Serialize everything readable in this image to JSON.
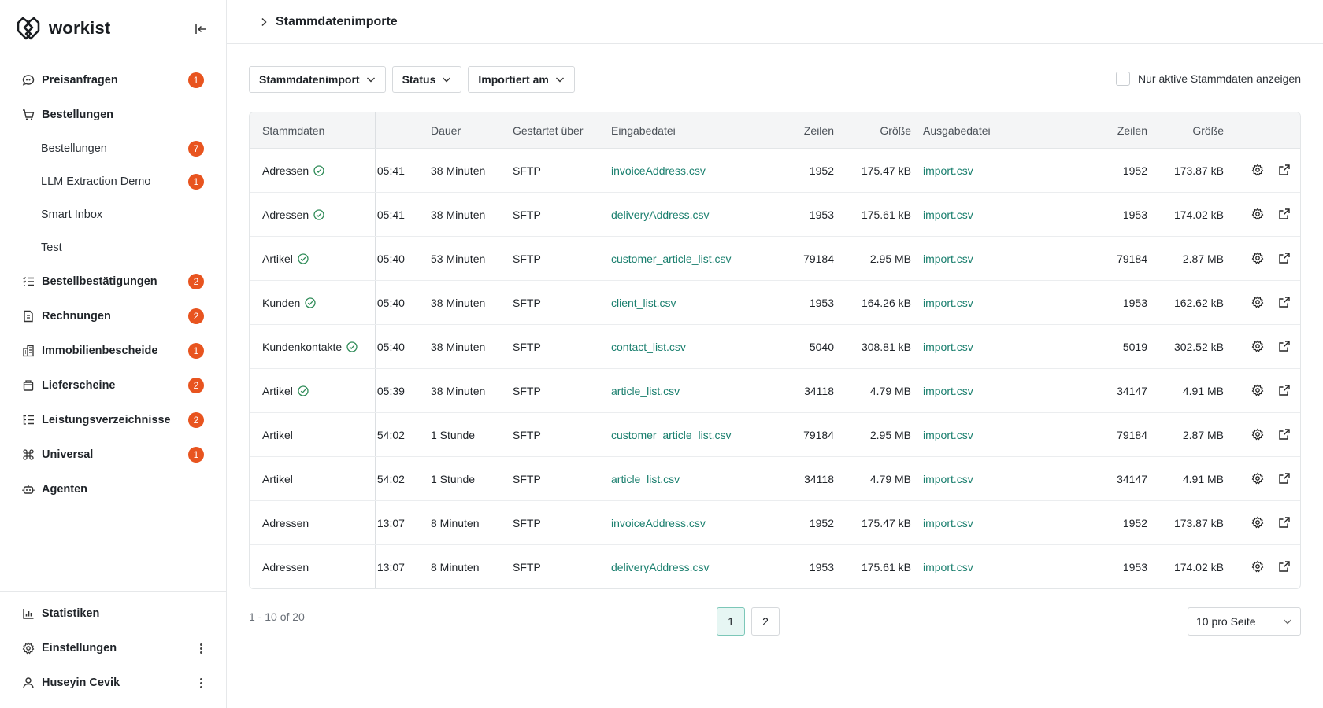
{
  "brand": {
    "name": "workist"
  },
  "sidebar": {
    "items": [
      {
        "label": "Preisanfragen",
        "icon": "chat-quote-icon",
        "badge": "1"
      },
      {
        "label": "Bestellungen",
        "icon": "cart-icon",
        "badge": ""
      },
      {
        "label": "Bestellungen",
        "sub": true,
        "badge": "7"
      },
      {
        "label": "LLM Extraction Demo",
        "sub": true,
        "badge": "1"
      },
      {
        "label": "Smart Inbox",
        "sub": true,
        "badge": ""
      },
      {
        "label": "Test",
        "sub": true,
        "badge": ""
      },
      {
        "label": "Bestellbestätigungen",
        "icon": "checklist-icon",
        "badge": "2"
      },
      {
        "label": "Rechnungen",
        "icon": "invoice-icon",
        "badge": "2"
      },
      {
        "label": "Immobilienbescheide",
        "icon": "buildings-icon",
        "badge": "1"
      },
      {
        "label": "Lieferscheine",
        "icon": "package-icon",
        "badge": "2"
      },
      {
        "label": "Leistungsverzeichnisse",
        "icon": "list-tree-icon",
        "badge": "2"
      },
      {
        "label": "Universal",
        "icon": "command-icon",
        "badge": "1"
      },
      {
        "label": "Agenten",
        "icon": "robot-icon",
        "badge": ""
      }
    ],
    "bottom": [
      {
        "label": "Statistiken",
        "icon": "bar-chart-icon"
      },
      {
        "label": "Einstellungen",
        "icon": "gear-icon"
      },
      {
        "label": "Huseyin Cevik",
        "icon": "user-icon"
      }
    ]
  },
  "header": {
    "breadcrumb": "Stammdatenimporte"
  },
  "filters": {
    "stammdatenimport": "Stammdatenimport",
    "status": "Status",
    "importiert_am": "Importiert am",
    "active_only_label": "Nur aktive Stammdaten anzeigen"
  },
  "table": {
    "headers": {
      "stammdaten": "Stammdaten",
      "dauer": "Dauer",
      "gestartet": "Gestartet über",
      "eingabedatei": "Eingabedatei",
      "zeilen_in": "Zeilen",
      "groesse_in": "Größe",
      "ausgabedatei": "Ausgabedatei",
      "zeilen_out": "Zeilen",
      "groesse_out": "Größe"
    },
    "rows": [
      {
        "stammdaten": "Adressen",
        "ok": true,
        "time": ":05:41",
        "dauer": "38 Minuten",
        "via": "SFTP",
        "input": "invoiceAddress.csv",
        "in_rows": "1952",
        "in_size": "175.47 kB",
        "output": "import.csv",
        "out_rows": "1952",
        "out_size": "173.87 kB"
      },
      {
        "stammdaten": "Adressen",
        "ok": true,
        "time": ":05:41",
        "dauer": "38 Minuten",
        "via": "SFTP",
        "input": "deliveryAddress.csv",
        "in_rows": "1953",
        "in_size": "175.61 kB",
        "output": "import.csv",
        "out_rows": "1953",
        "out_size": "174.02 kB"
      },
      {
        "stammdaten": "Artikel",
        "ok": true,
        "time": ":05:40",
        "dauer": "53 Minuten",
        "via": "SFTP",
        "input": "customer_article_list.csv",
        "in_rows": "79184",
        "in_size": "2.95 MB",
        "output": "import.csv",
        "out_rows": "79184",
        "out_size": "2.87 MB"
      },
      {
        "stammdaten": "Kunden",
        "ok": true,
        "time": ":05:40",
        "dauer": "38 Minuten",
        "via": "SFTP",
        "input": "client_list.csv",
        "in_rows": "1953",
        "in_size": "164.26 kB",
        "output": "import.csv",
        "out_rows": "1953",
        "out_size": "162.62 kB"
      },
      {
        "stammdaten": "Kundenkontakte",
        "ok": true,
        "time": ":05:40",
        "dauer": "38 Minuten",
        "via": "SFTP",
        "input": "contact_list.csv",
        "in_rows": "5040",
        "in_size": "308.81 kB",
        "output": "import.csv",
        "out_rows": "5019",
        "out_size": "302.52 kB"
      },
      {
        "stammdaten": "Artikel",
        "ok": true,
        "time": ":05:39",
        "dauer": "38 Minuten",
        "via": "SFTP",
        "input": "article_list.csv",
        "in_rows": "34118",
        "in_size": "4.79 MB",
        "output": "import.csv",
        "out_rows": "34147",
        "out_size": "4.91 MB"
      },
      {
        "stammdaten": "Artikel",
        "ok": false,
        "time": ":54:02",
        "dauer": "1 Stunde",
        "via": "SFTP",
        "input": "customer_article_list.csv",
        "in_rows": "79184",
        "in_size": "2.95 MB",
        "output": "import.csv",
        "out_rows": "79184",
        "out_size": "2.87 MB"
      },
      {
        "stammdaten": "Artikel",
        "ok": false,
        "time": ":54:02",
        "dauer": "1 Stunde",
        "via": "SFTP",
        "input": "article_list.csv",
        "in_rows": "34118",
        "in_size": "4.79 MB",
        "output": "import.csv",
        "out_rows": "34147",
        "out_size": "4.91 MB"
      },
      {
        "stammdaten": "Adressen",
        "ok": false,
        "time": ":13:07",
        "dauer": "8 Minuten",
        "via": "SFTP",
        "input": "invoiceAddress.csv",
        "in_rows": "1952",
        "in_size": "175.47 kB",
        "output": "import.csv",
        "out_rows": "1952",
        "out_size": "173.87 kB"
      },
      {
        "stammdaten": "Adressen",
        "ok": false,
        "time": ":13:07",
        "dauer": "8 Minuten",
        "via": "SFTP",
        "input": "deliveryAddress.csv",
        "in_rows": "1953",
        "in_size": "175.61 kB",
        "output": "import.csv",
        "out_rows": "1953",
        "out_size": "174.02 kB"
      }
    ]
  },
  "pagination": {
    "info": "1 - 10 of 20",
    "pages": [
      "1",
      "2"
    ],
    "current": "1",
    "per_page": "10 pro Seite"
  },
  "colors": {
    "accent": "#1a7f6e",
    "badge": "#e8541f",
    "success": "#2e8b57"
  }
}
